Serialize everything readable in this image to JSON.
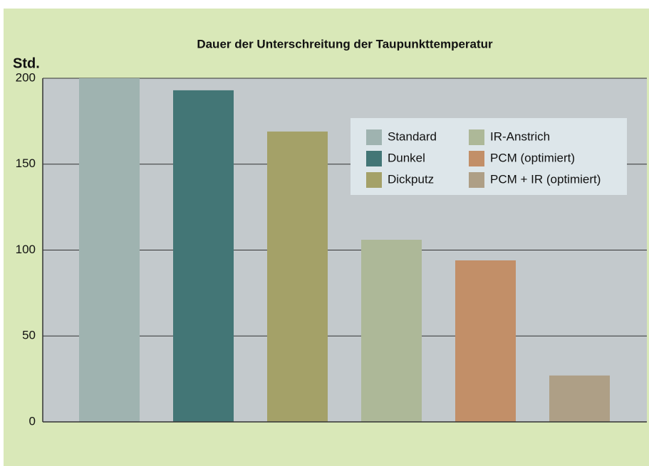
{
  "chart_data": {
    "type": "bar",
    "title": "Dauer der Unterschreitung der Taupunkttemperatur",
    "y_label": "Std.",
    "categories": [
      "Standard",
      "Dunkel",
      "Dickputz",
      "IR-Anstrich",
      "PCM (optimiert)",
      "PCM + IR (optimiert)"
    ],
    "values": [
      200,
      193,
      169,
      106,
      94,
      27
    ],
    "colors": [
      "#9fb3b0",
      "#437676",
      "#a4a168",
      "#adb898",
      "#c28f68",
      "#ae9f86"
    ],
    "ylim": [
      0,
      200
    ],
    "yticks": [
      0,
      50,
      100,
      150,
      200
    ],
    "grid": true,
    "legend": "top-right"
  }
}
